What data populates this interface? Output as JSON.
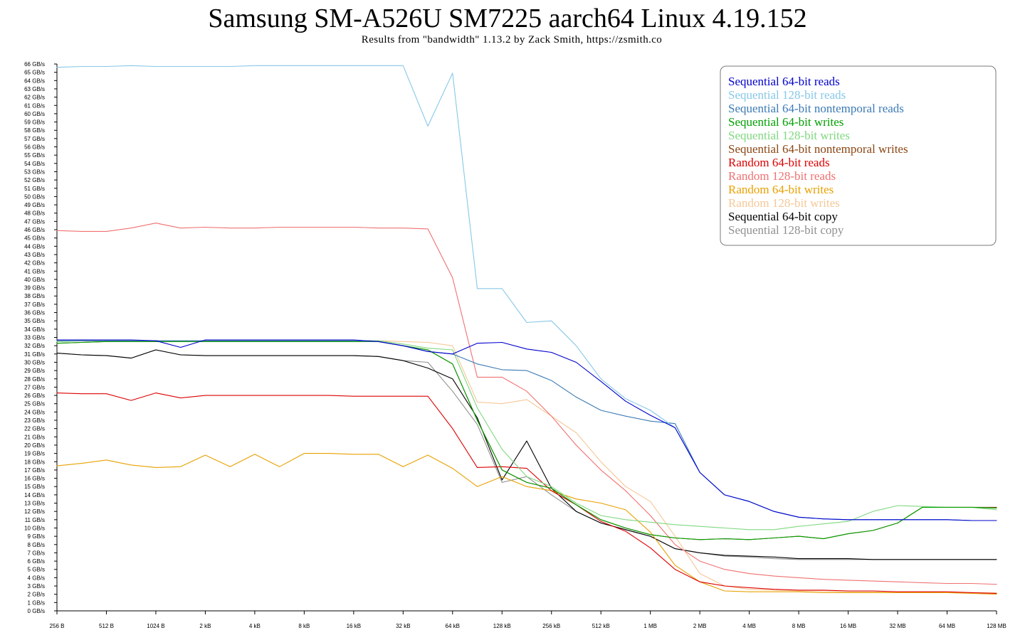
{
  "chart_data": {
    "type": "line",
    "title": "Samsung SM-A526U SM7225 aarch64 Linux 4.19.152",
    "subtitle": "Results from \"bandwidth\" 1.13.2 by Zack Smith, https://zsmith.co",
    "xlabel": "",
    "ylabel": "",
    "x_scale": "log2",
    "x_log2": [
      8,
      8.5,
      9,
      9.5,
      10,
      10.5,
      11,
      11.5,
      12,
      12.5,
      13,
      13.5,
      14,
      14.5,
      15,
      15.5,
      16,
      16.5,
      17,
      17.5,
      18,
      18.5,
      19,
      19.5,
      20,
      20.5,
      21,
      21.5,
      22,
      22.5,
      23,
      23.5,
      24,
      24.5,
      25,
      25.5,
      26,
      26.5,
      27
    ],
    "x_tick_log2": [
      8,
      9,
      10,
      11,
      12,
      13,
      14,
      15,
      16,
      17,
      18,
      19,
      20,
      21,
      22,
      23,
      24,
      25,
      26,
      27
    ],
    "x_tick_labels": [
      "256 B",
      "512 B",
      "1024 B",
      "2 kB",
      "4 kB",
      "8 kB",
      "16 kB",
      "32 kB",
      "64 kB",
      "128 kB",
      "256 kB",
      "512 kB",
      "1 MB",
      "2 MB",
      "4 MB",
      "8 MB",
      "16 MB",
      "32 MB",
      "64 MB",
      "128 MB"
    ],
    "ylim": [
      0,
      66
    ],
    "y_tick_step": 1,
    "y_tick_unit": " GB/s",
    "grid": false,
    "legend": "top-right",
    "series": [
      {
        "name": "Sequential 64-bit reads",
        "color": "#0000cc",
        "values": [
          32.7,
          32.7,
          32.7,
          32.7,
          32.6,
          31.8,
          32.7,
          32.7,
          32.7,
          32.7,
          32.7,
          32.7,
          32.7,
          32.5,
          32.0,
          31.3,
          31.0,
          32.3,
          32.4,
          31.6,
          31.2,
          30.0,
          27.7,
          25.3,
          23.6,
          22.1,
          16.7,
          14.0,
          13.2,
          12.0,
          11.3,
          11.1,
          11.0,
          11.0,
          11.0,
          11.0,
          11.0,
          10.9,
          10.9
        ]
      },
      {
        "name": "Sequential 128-bit reads",
        "color": "#87c8e8",
        "values": [
          65.6,
          65.7,
          65.7,
          65.8,
          65.7,
          65.7,
          65.7,
          65.7,
          65.8,
          65.8,
          65.8,
          65.8,
          65.8,
          65.8,
          65.8,
          58.5,
          64.9,
          38.9,
          38.9,
          34.8,
          35.0,
          32.0,
          28.0,
          25.6,
          24.2,
          22.1,
          16.7,
          14.0,
          13.2,
          12.0,
          11.3,
          11.1,
          11.0,
          11.0,
          11.0,
          11.0,
          11.0,
          10.9,
          10.9
        ]
      },
      {
        "name": "Sequential 64-bit nontemporal reads",
        "color": "#3b7ab5",
        "values": [
          32.6,
          32.6,
          32.6,
          32.6,
          32.6,
          32.6,
          32.6,
          32.6,
          32.6,
          32.6,
          32.6,
          32.6,
          32.6,
          32.5,
          32.0,
          31.3,
          31.0,
          29.8,
          29.1,
          29.0,
          27.8,
          25.8,
          24.2,
          23.5,
          22.9,
          22.6,
          16.7,
          14.0,
          13.2,
          12.0,
          11.3,
          11.1,
          11.0,
          11.0,
          11.0,
          11.0,
          11.0,
          10.9,
          10.9
        ]
      },
      {
        "name": "Sequential 64-bit writes",
        "color": "#00a000",
        "values": [
          32.3,
          32.4,
          32.5,
          32.5,
          32.5,
          32.5,
          32.5,
          32.5,
          32.5,
          32.5,
          32.5,
          32.5,
          32.5,
          32.5,
          32.0,
          31.5,
          29.8,
          23.0,
          17.0,
          15.5,
          14.8,
          12.8,
          11.0,
          10.0,
          9.2,
          8.8,
          8.6,
          8.7,
          8.6,
          8.8,
          9.0,
          8.7,
          9.3,
          9.7,
          10.6,
          12.5,
          12.5,
          12.5,
          12.4
        ]
      },
      {
        "name": "Sequential 128-bit writes",
        "color": "#80d880",
        "values": [
          32.5,
          32.6,
          32.6,
          32.6,
          32.6,
          32.6,
          32.6,
          32.6,
          32.6,
          32.6,
          32.6,
          32.6,
          32.6,
          32.6,
          32.2,
          31.7,
          31.5,
          24.5,
          19.5,
          16.2,
          15.0,
          13.0,
          11.5,
          11.0,
          10.7,
          10.4,
          10.2,
          10.0,
          9.8,
          9.8,
          10.2,
          10.5,
          10.8,
          12.0,
          12.7,
          12.6,
          12.5,
          12.5,
          12.2
        ]
      },
      {
        "name": "Sequential 64-bit nontemporal writes",
        "color": "#8b4513",
        "values": [
          32.3,
          32.4,
          32.5,
          32.5,
          32.5,
          32.5,
          32.5,
          32.5,
          32.5,
          32.5,
          32.5,
          32.5,
          32.5,
          32.5,
          32.0,
          31.5,
          29.8,
          23.0,
          17.0,
          15.5,
          14.8,
          12.8,
          11.0,
          10.0,
          9.2,
          8.8,
          8.6,
          8.7,
          8.6,
          8.8,
          9.0,
          8.7,
          9.3,
          9.7,
          10.6,
          12.5,
          12.5,
          12.5,
          12.5
        ]
      },
      {
        "name": "Random 64-bit reads",
        "color": "#dd0000",
        "values": [
          26.3,
          26.2,
          26.2,
          25.4,
          26.3,
          25.7,
          26.0,
          26.0,
          26.0,
          26.0,
          26.0,
          26.0,
          25.9,
          25.9,
          25.9,
          25.9,
          22.0,
          17.3,
          17.4,
          17.2,
          14.5,
          12.8,
          10.8,
          9.6,
          7.6,
          5.0,
          3.5,
          3.0,
          2.8,
          2.6,
          2.5,
          2.5,
          2.4,
          2.4,
          2.3,
          2.3,
          2.3,
          2.2,
          2.1
        ]
      },
      {
        "name": "Random 128-bit reads",
        "color": "#f07070",
        "values": [
          45.9,
          45.8,
          45.8,
          46.2,
          46.8,
          46.2,
          46.3,
          46.2,
          46.2,
          46.3,
          46.3,
          46.3,
          46.3,
          46.2,
          46.2,
          46.1,
          40.2,
          28.2,
          28.2,
          26.5,
          23.5,
          20.0,
          17.0,
          14.5,
          11.5,
          8.0,
          6.0,
          5.0,
          4.5,
          4.2,
          4.0,
          3.8,
          3.7,
          3.6,
          3.5,
          3.4,
          3.3,
          3.3,
          3.2
        ]
      },
      {
        "name": "Random 64-bit writes",
        "color": "#e8a000",
        "values": [
          17.5,
          17.8,
          18.2,
          17.6,
          17.3,
          17.4,
          18.8,
          17.4,
          18.9,
          17.4,
          19.0,
          19.0,
          18.9,
          18.9,
          17.4,
          18.8,
          17.2,
          15.0,
          16.2,
          15.0,
          14.5,
          13.5,
          13.0,
          12.2,
          9.5,
          5.5,
          3.5,
          2.4,
          2.3,
          2.3,
          2.3,
          2.2,
          2.2,
          2.2,
          2.2,
          2.2,
          2.2,
          2.1,
          2.0
        ]
      },
      {
        "name": "Random 128-bit writes",
        "color": "#f5c898",
        "values": [
          32.5,
          32.6,
          32.6,
          32.6,
          32.6,
          32.6,
          32.6,
          32.6,
          32.6,
          32.6,
          32.6,
          32.6,
          32.6,
          32.6,
          32.5,
          32.4,
          32.0,
          25.2,
          25.0,
          25.5,
          23.5,
          21.5,
          18.0,
          15.0,
          13.2,
          9.0,
          4.5,
          3.0,
          2.6,
          2.5,
          2.4,
          2.4,
          2.3,
          2.3,
          2.3,
          2.3,
          2.2,
          2.2,
          2.2
        ]
      },
      {
        "name": "Sequential 64-bit copy",
        "color": "#000000",
        "values": [
          31.1,
          30.9,
          30.8,
          30.5,
          31.5,
          30.9,
          30.8,
          30.8,
          30.8,
          30.8,
          30.8,
          30.8,
          30.8,
          30.7,
          30.2,
          29.3,
          28.0,
          23.3,
          15.8,
          20.5,
          14.8,
          12.0,
          10.6,
          9.8,
          9.0,
          7.5,
          7.0,
          6.7,
          6.6,
          6.5,
          6.3,
          6.3,
          6.3,
          6.2,
          6.2,
          6.2,
          6.2,
          6.2,
          6.2
        ]
      },
      {
        "name": "Sequential 128-bit copy",
        "color": "#909090",
        "values": [
          31.1,
          30.9,
          30.8,
          30.5,
          31.5,
          30.9,
          30.8,
          30.8,
          30.8,
          30.8,
          30.8,
          30.8,
          30.8,
          30.7,
          30.2,
          30.0,
          26.5,
          22.5,
          15.5,
          16.2,
          14.0,
          12.0,
          10.6,
          9.8,
          9.0,
          7.5,
          7.0,
          6.6,
          6.5,
          6.3,
          6.2,
          6.2,
          6.2,
          6.2,
          6.2,
          6.2,
          6.2,
          6.2,
          6.2
        ]
      }
    ]
  }
}
